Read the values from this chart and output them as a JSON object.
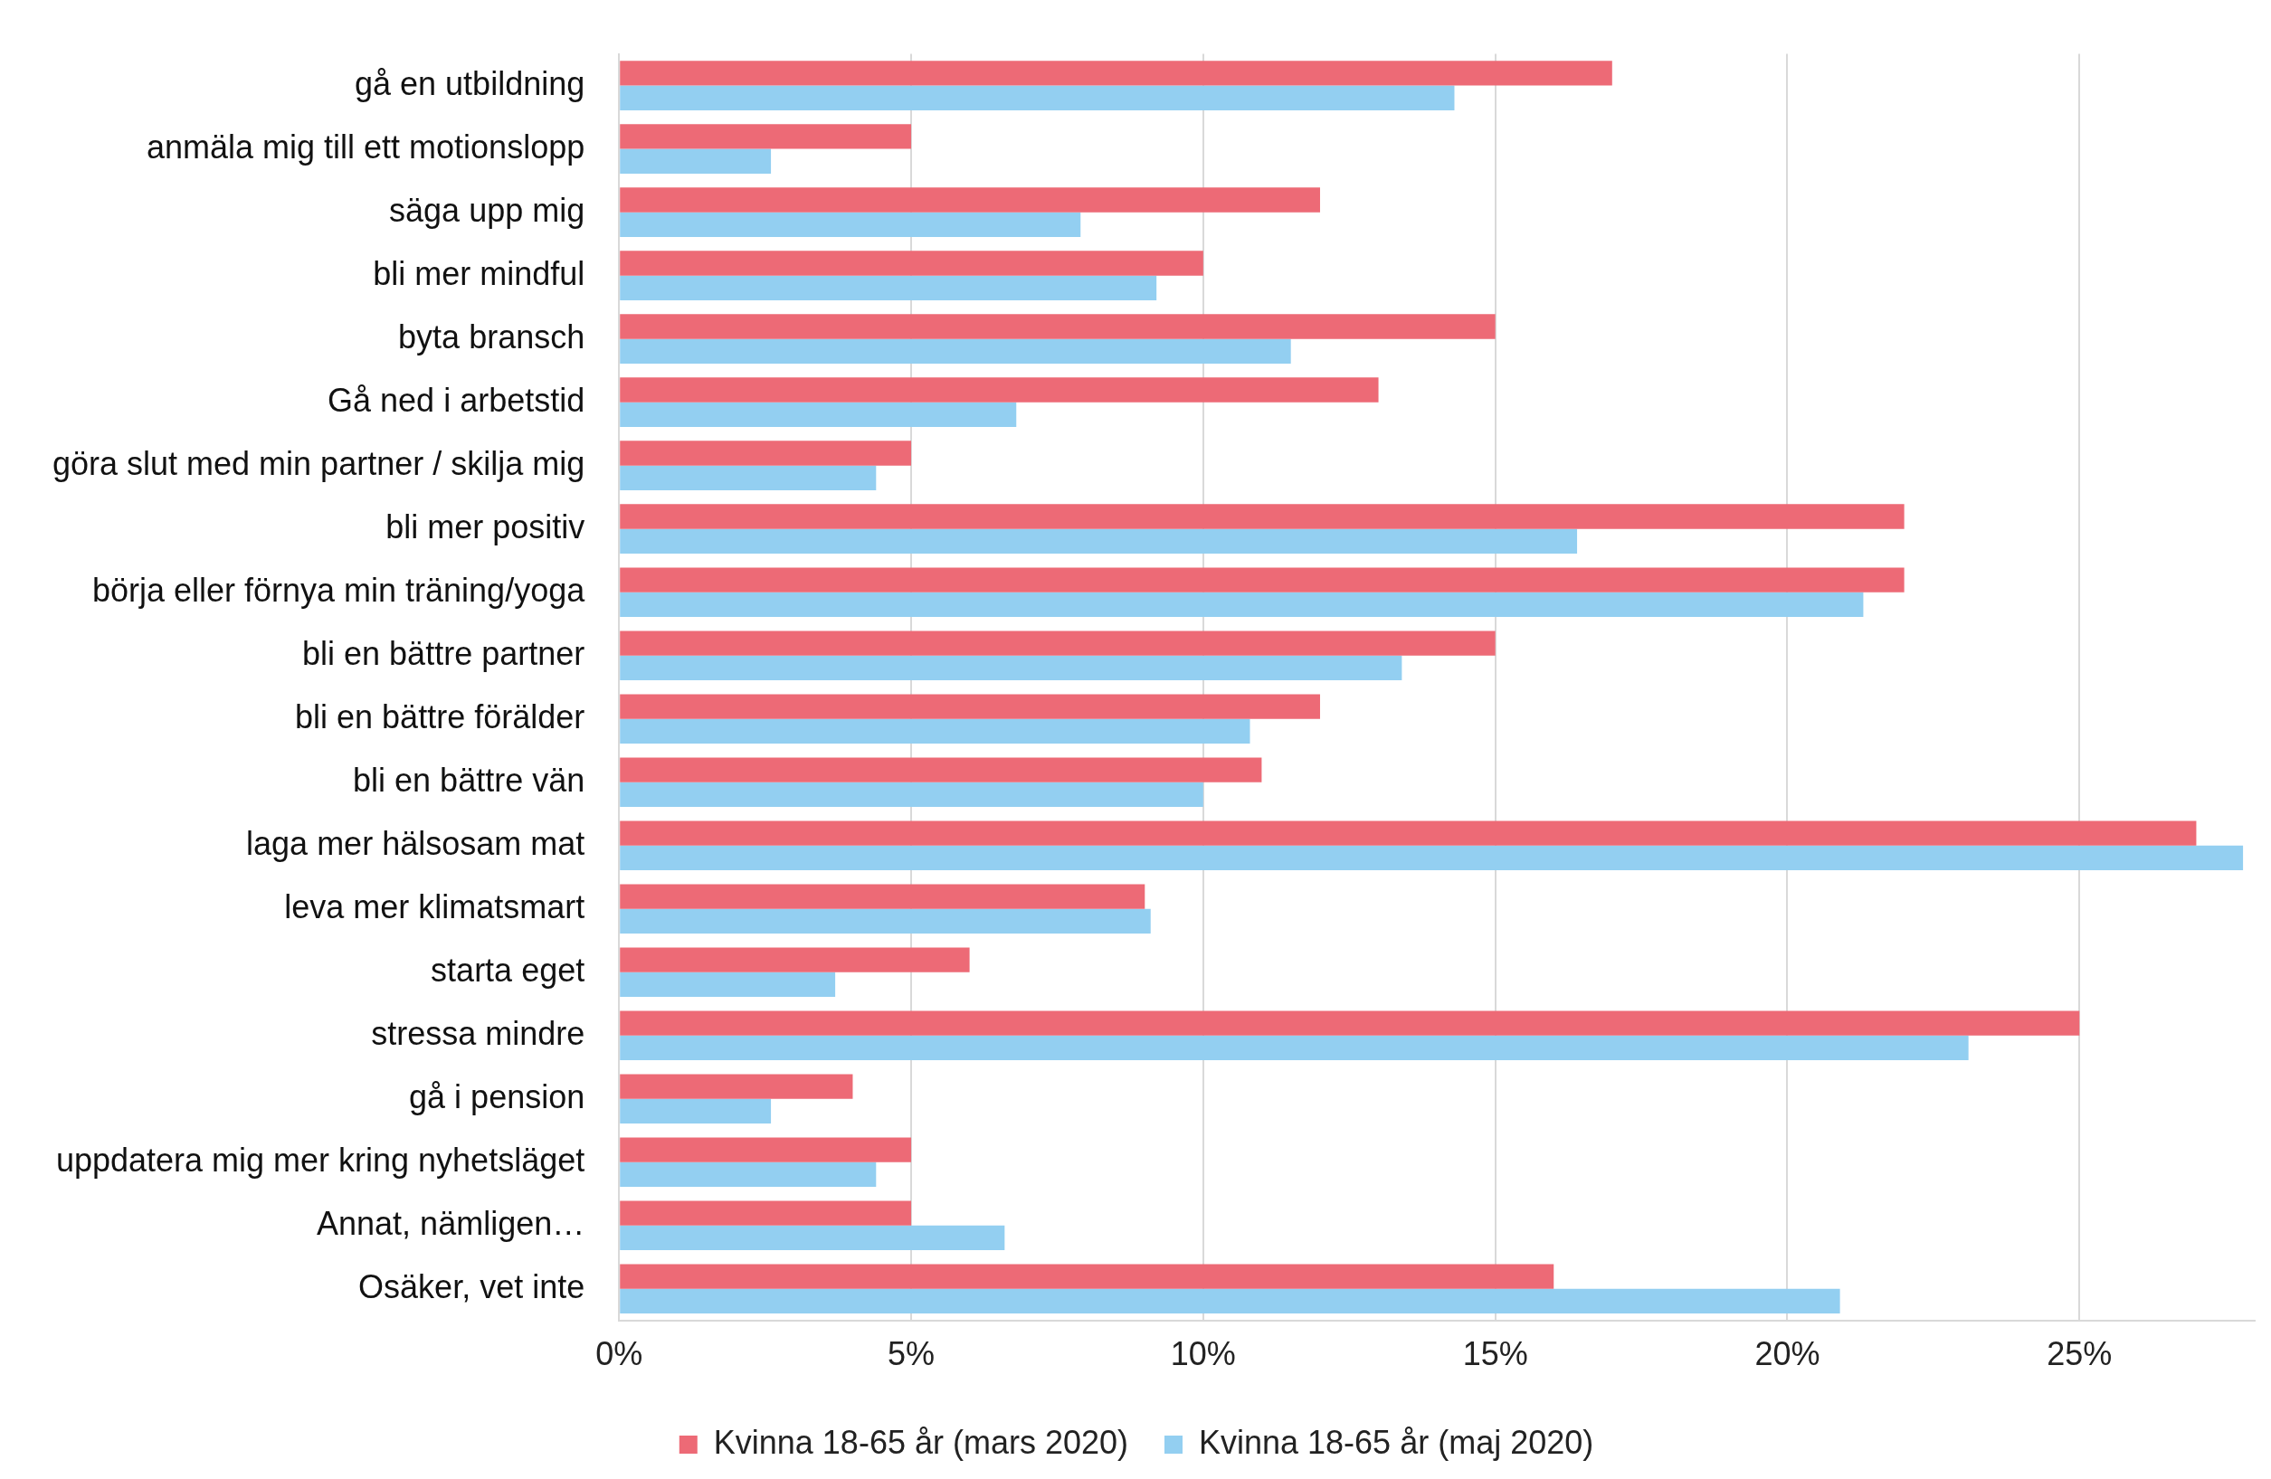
{
  "chart_data": {
    "type": "bar",
    "orientation": "horizontal",
    "categories": [
      "gå en utbildning",
      "anmäla mig till ett motionslopp",
      "säga upp mig",
      "bli mer mindful",
      "byta bransch",
      "Gå ned i arbetstid",
      "göra slut med min partner / skilja mig",
      "bli mer positiv",
      "börja eller förnya min träning/yoga",
      "bli en bättre partner",
      "bli en bättre förälder",
      "bli en bättre vän",
      "laga mer hälsosam mat",
      "leva mer klimatsmart",
      "starta eget",
      "stressa mindre",
      "gå i pension",
      "uppdatera mig mer kring nyhetsläget",
      "Annat, nämligen…",
      "Osäker, vet inte"
    ],
    "series": [
      {
        "name": "Kvinna 18-65 år (mars 2020)",
        "color": "#ed6a76",
        "values": [
          17,
          5,
          12,
          10,
          15,
          13,
          5,
          22,
          22,
          15,
          12,
          11,
          27,
          9,
          6,
          25,
          4,
          5,
          5,
          16
        ]
      },
      {
        "name": "Kvinna 18-65 år (maj 2020)",
        "color": "#93cff1",
        "values": [
          14.3,
          2.6,
          7.9,
          9.2,
          11.5,
          6.8,
          4.4,
          16.4,
          21.3,
          13.4,
          10.8,
          10,
          27.8,
          9.1,
          3.7,
          23.1,
          2.6,
          4.4,
          6.6,
          20.9
        ]
      }
    ],
    "xlim": [
      0,
      28
    ],
    "xticks": [
      {
        "value": 0,
        "label": "0%"
      },
      {
        "value": 5,
        "label": "5%"
      },
      {
        "value": 10,
        "label": "10%"
      },
      {
        "value": 15,
        "label": "15%"
      },
      {
        "value": 20,
        "label": "20%"
      },
      {
        "value": 25,
        "label": "25%"
      }
    ],
    "grid": "x",
    "legend": "bottom"
  }
}
